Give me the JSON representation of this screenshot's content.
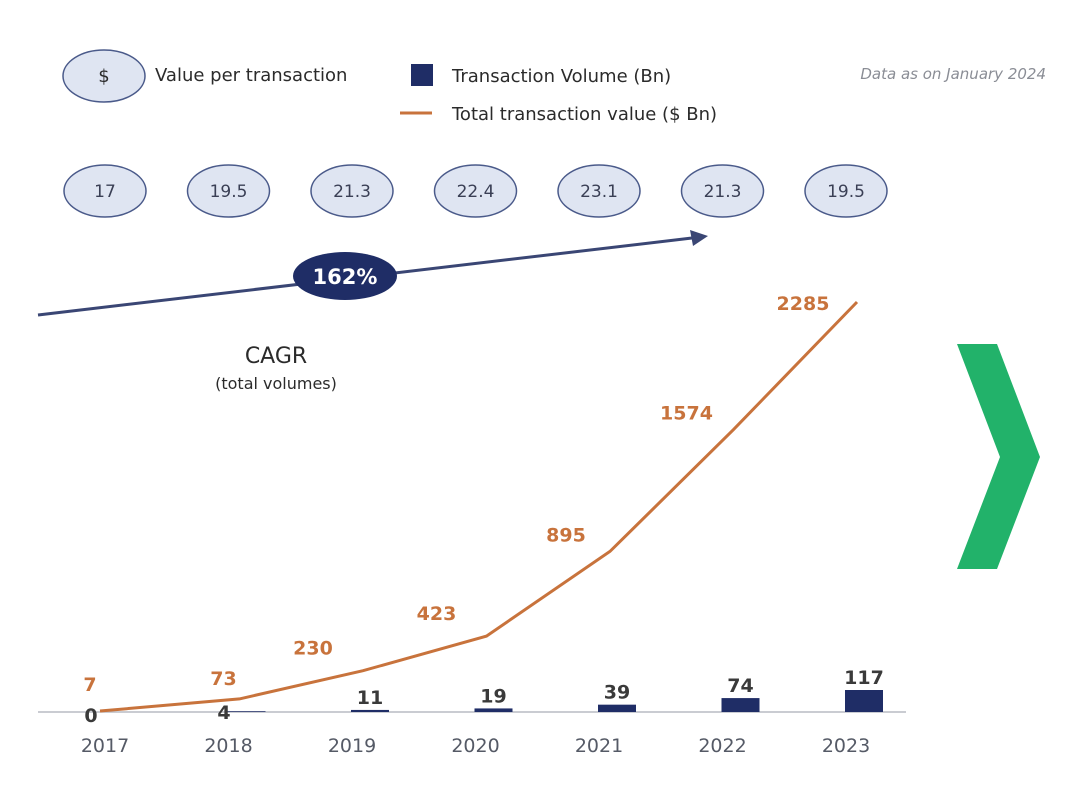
{
  "legend": {
    "value_per_transaction": "Value per transaction",
    "value_badge_symbol": "$",
    "transaction_volume": "Transaction Volume (Bn)",
    "total_value": "Total transaction value  ($ Bn)"
  },
  "note": "Data as  on January 2024",
  "cagr": {
    "value": "162%",
    "label": "CAGR",
    "sublabel": "(total volumes)"
  },
  "colors": {
    "bar": "#1f2d66",
    "line": "#c8733c",
    "bubble_fill": "#dfe5f2",
    "bubble_stroke": "#4a5a8a",
    "arrow": "#3a4674",
    "cagr_fill": "#1f2d66",
    "chevron": "#22b26a",
    "axis": "#b9bcc4"
  },
  "chart_data": {
    "type": "bar",
    "categories": [
      "2017",
      "2018",
      "2019",
      "2020",
      "2021",
      "2022",
      "2023"
    ],
    "series": [
      {
        "name": "Transaction Volume (Bn)",
        "kind": "bar",
        "values": [
          0,
          4,
          11,
          19,
          39,
          74,
          117
        ]
      },
      {
        "name": "Total transaction value  ($ Bn)",
        "kind": "line",
        "values": [
          7,
          73,
          230,
          423,
          895,
          1574,
          2285
        ]
      },
      {
        "name": "Value per transaction",
        "kind": "bubble",
        "values": [
          "17",
          "19.5",
          "21.3",
          "22.4",
          "23.1",
          "21.3",
          "19.5"
        ]
      }
    ]
  }
}
